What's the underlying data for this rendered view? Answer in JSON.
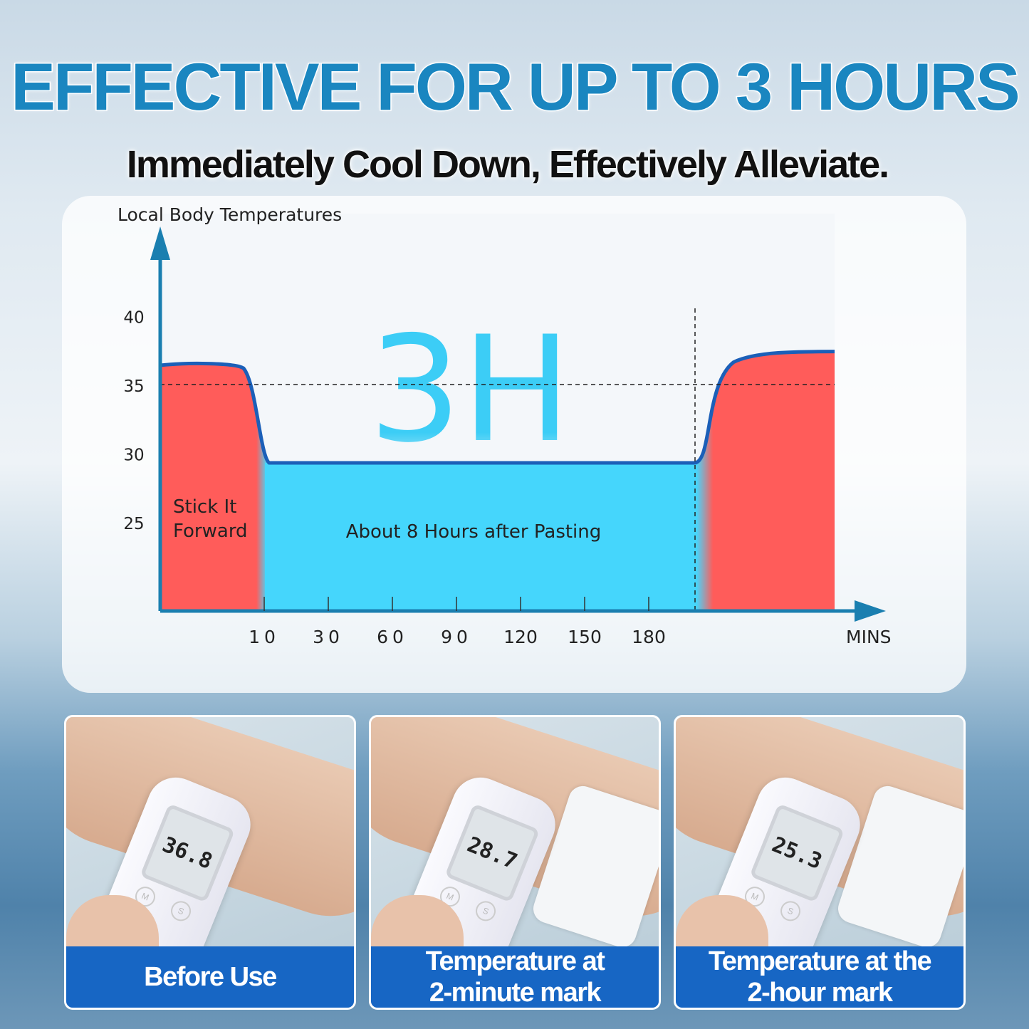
{
  "header": {
    "title": "EFFECTIVE FOR UP TO 3 HOURS",
    "subtitle": "Immediately Cool Down, Effectively Alleviate."
  },
  "chart_data": {
    "type": "area",
    "ylabel": "Local Body Temperatures",
    "xlabel": "MINS",
    "y_ticks": [
      "40",
      "35",
      "30",
      "25"
    ],
    "x_ticks": [
      "10",
      "30",
      "60",
      "90",
      "120",
      "150",
      "180"
    ],
    "reference_line": 35,
    "center_label": "3H",
    "regions": [
      {
        "label": "Stick It\nForward",
        "label_lines": [
          "Stick It",
          "Forward"
        ],
        "color": "#ff5c5a",
        "temp_start": 36.4,
        "temp_peak": 36.6
      },
      {
        "label": "About 8 Hours after Pasting",
        "color": "#45d6fc",
        "temp": 29.3
      },
      {
        "label": "",
        "color": "#ff5c5a",
        "temp_end": 37.4
      }
    ],
    "line_color": "#1b5fb8",
    "axis_color": "#1a7fb0"
  },
  "cards": [
    {
      "reading": "36.8",
      "caption_lines": [
        "Before Use"
      ],
      "patch": false
    },
    {
      "reading": "28.7",
      "caption_lines": [
        "Temperature at",
        "2-minute mark"
      ],
      "patch": true
    },
    {
      "reading": "25.3",
      "caption_lines": [
        "Temperature at the",
        "2-hour mark"
      ],
      "patch": true
    }
  ]
}
